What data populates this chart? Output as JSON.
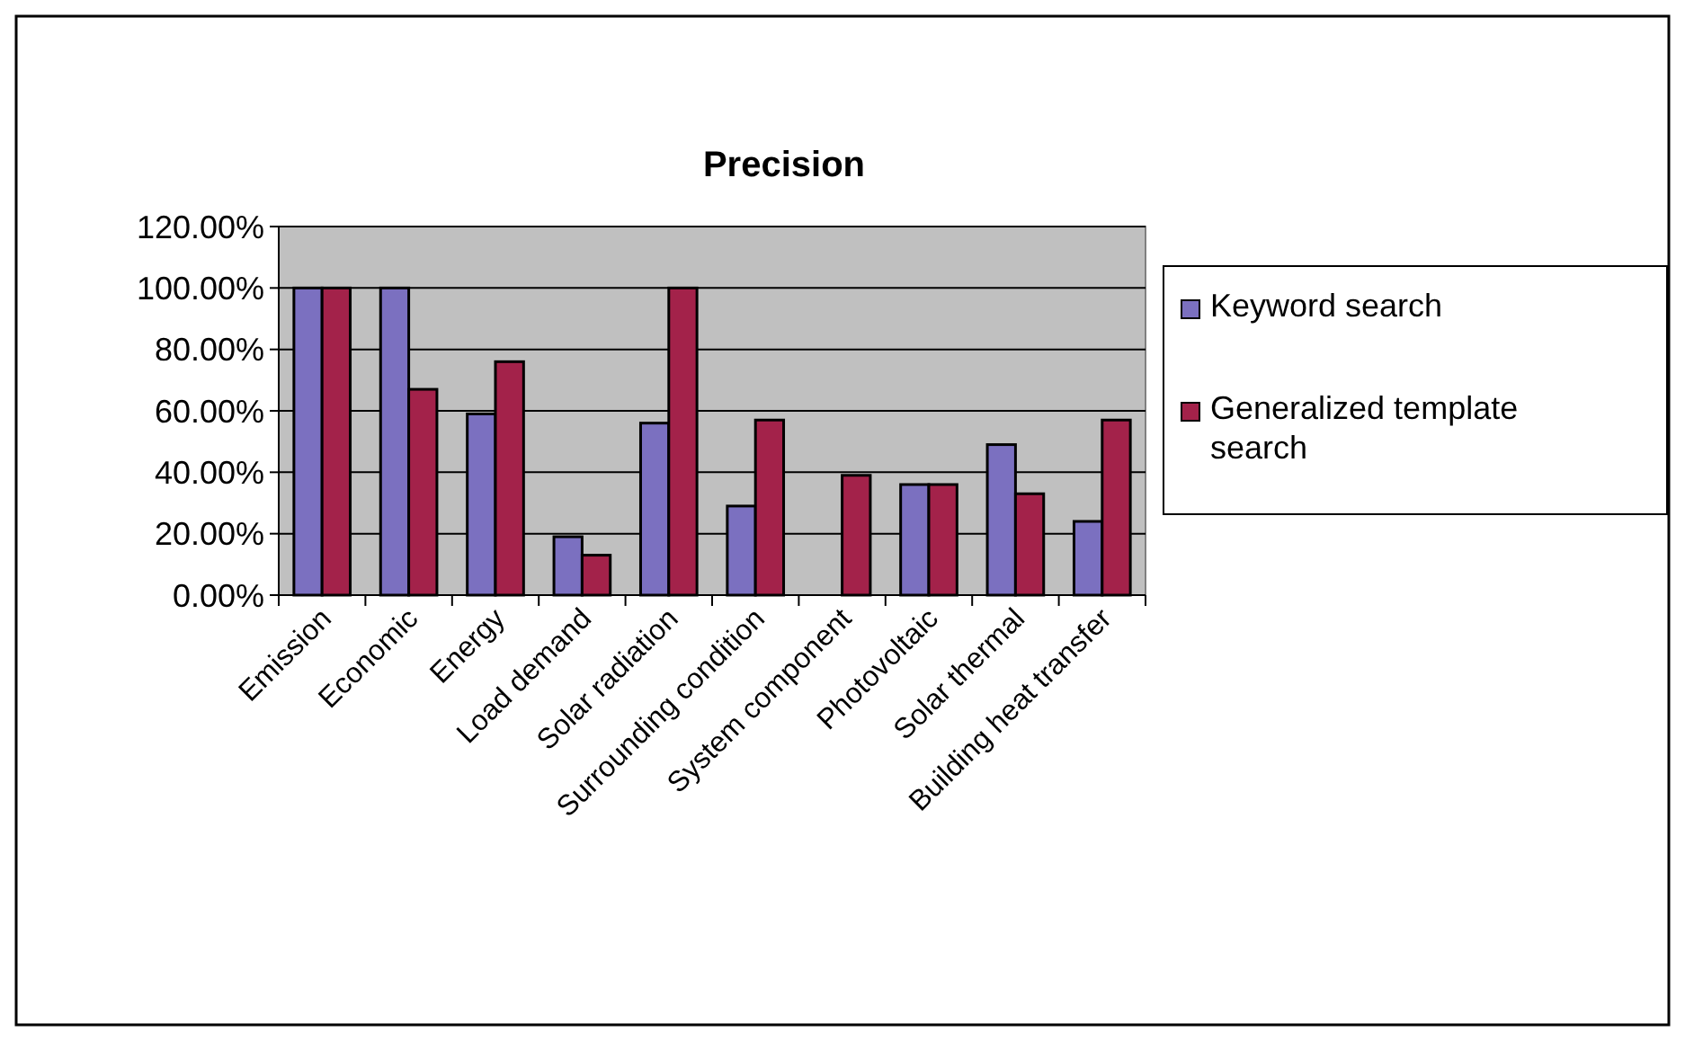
{
  "chart_data": {
    "type": "bar",
    "title": "Precision",
    "categories": [
      "Emission",
      "Economic",
      "Energy",
      "Load demand",
      "Solar radiation",
      "Surrounding condition",
      "System component",
      "Photovoltaic",
      "Solar thermal",
      "Building heat transfer"
    ],
    "series": [
      {
        "name": "Keyword search",
        "color": "#7b70c0",
        "values": [
          100,
          100,
          59,
          19,
          56,
          29,
          0,
          36,
          49,
          24
        ]
      },
      {
        "name": "Generalized template search",
        "color": "#a3224a",
        "values": [
          100,
          67,
          76,
          13,
          100,
          57,
          39,
          36,
          33,
          57
        ]
      }
    ],
    "ylim": [
      0,
      120
    ],
    "yticks": [
      {
        "value": 0,
        "label": "0.00%"
      },
      {
        "value": 20,
        "label": "20.00%"
      },
      {
        "value": 40,
        "label": "40.00%"
      },
      {
        "value": 60,
        "label": "60.00%"
      },
      {
        "value": 80,
        "label": "80.00%"
      },
      {
        "value": 100,
        "label": "100.00%"
      },
      {
        "value": 120,
        "label": "120.00%"
      }
    ],
    "grid": "y",
    "legend": "right"
  }
}
